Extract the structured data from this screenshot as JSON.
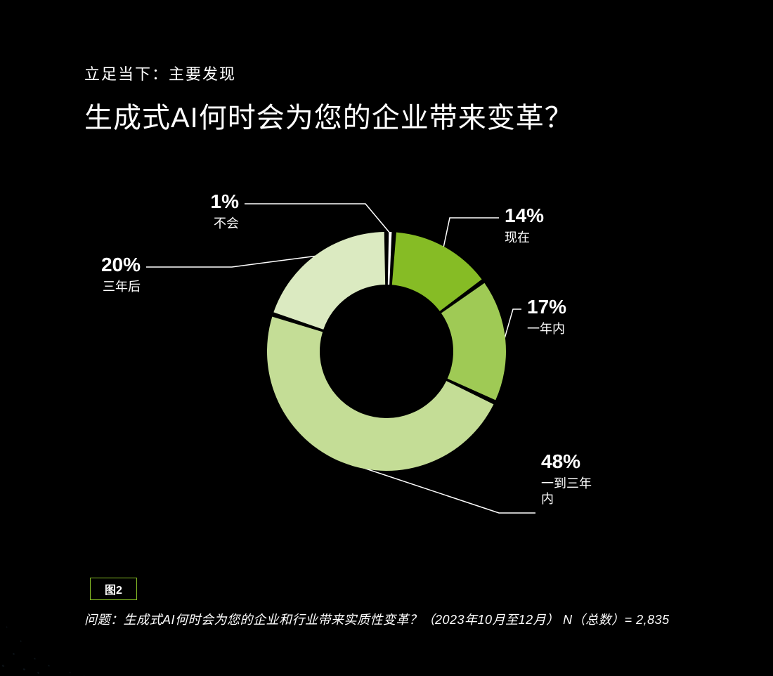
{
  "eyebrow": "立足当下：主要发现",
  "title": "生成式AI何时会为您的企业带来变革？",
  "chart": {
    "type": "donut",
    "background_color": "#000000",
    "ring_outer_radius": 170,
    "ring_inner_radius": 95,
    "segment_gap_deg": 2.2,
    "gap_color": "#000000",
    "start_angle_deg": -90,
    "segments": [
      {
        "key": "never",
        "value": 1,
        "pct_label": "1%",
        "label": "不会",
        "color": "#ffffff"
      },
      {
        "key": "now",
        "value": 14,
        "pct_label": "14%",
        "label": "现在",
        "color": "#86bc25"
      },
      {
        "key": "one_yr",
        "value": 17,
        "pct_label": "17%",
        "label": "一年内",
        "color": "#9fca55"
      },
      {
        "key": "one_three",
        "value": 48,
        "pct_label": "48%",
        "label": "一到三年\n内",
        "color": "#c4dd96"
      },
      {
        "key": "three_plus",
        "value": 20,
        "pct_label": "20%",
        "label": "三年后",
        "color": "#dbeac1"
      }
    ],
    "callout_pct_fontsize": 28,
    "callout_label_fontsize": 18,
    "leader_color": "#ffffff",
    "leader_width": 1.5
  },
  "figure_badge": "图2",
  "figure_badge_border_color": "#86bc25",
  "footnote": "问题：生成式AI何时会为您的企业和行业带来实质性变革？（2023年10月至12月） N（总数）= 2,835"
}
